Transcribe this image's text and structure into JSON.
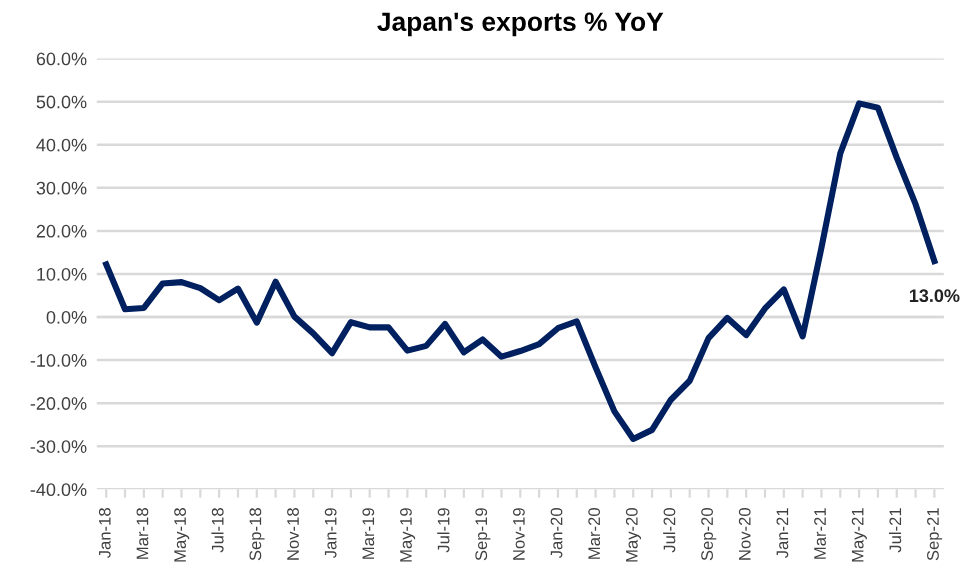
{
  "chart_data": {
    "type": "line",
    "title": "Japan's exports % YoY",
    "categories": [
      "Jan-18",
      null,
      "Mar-18",
      null,
      "May-18",
      null,
      "Jul-18",
      null,
      "Sep-18",
      null,
      "Nov-18",
      null,
      "Jan-19",
      null,
      "Mar-19",
      null,
      "May-19",
      null,
      "Jul-19",
      null,
      "Sep-19",
      null,
      "Nov-19",
      null,
      "Jan-20",
      null,
      "Mar-20",
      null,
      "May-20",
      null,
      "Jul-20",
      null,
      "Sep-20",
      null,
      "Nov-20",
      null,
      "Jan-21",
      null,
      "Mar-21",
      null,
      "May-21",
      null,
      "Jul-21",
      null,
      "Sep-21"
    ],
    "series": [
      {
        "color": "#002060",
        "values": [
          12.2,
          1.8,
          2.1,
          7.8,
          8.1,
          6.7,
          3.9,
          6.6,
          -1.3,
          8.2,
          0.1,
          -3.8,
          -8.4,
          -1.2,
          -2.4,
          -2.4,
          -7.8,
          -6.7,
          -1.6,
          -8.2,
          -5.2,
          -9.2,
          -7.9,
          -6.3,
          -2.6,
          -1.0,
          -11.7,
          -21.9,
          -28.3,
          -26.2,
          -19.2,
          -14.8,
          -4.9,
          -0.2,
          -4.2,
          2.0,
          6.4,
          -4.5,
          16.1,
          38.0,
          49.6,
          48.6,
          37.0,
          26.2,
          13.0
        ],
        "value_labels": [
          null,
          null,
          null,
          null,
          null,
          null,
          null,
          null,
          null,
          null,
          null,
          null,
          null,
          null,
          null,
          null,
          null,
          null,
          null,
          null,
          null,
          null,
          null,
          null,
          null,
          null,
          null,
          null,
          null,
          null,
          null,
          null,
          null,
          null,
          null,
          null,
          null,
          null,
          null,
          null,
          null,
          null,
          null,
          null,
          "13.0%"
        ]
      }
    ],
    "ylim": [
      -40,
      60
    ],
    "yticks": [
      {
        "value": -40,
        "label": "-40.0%"
      },
      {
        "value": -30,
        "label": "-30.0%"
      },
      {
        "value": -20,
        "label": "-20.0%"
      },
      {
        "value": -10,
        "label": "-10.0%"
      },
      {
        "value": 0,
        "label": "0.0%"
      },
      {
        "value": 10,
        "label": "10.0%"
      },
      {
        "value": 20,
        "label": "20.0%"
      },
      {
        "value": 30,
        "label": "30.0%"
      },
      {
        "value": 40,
        "label": "40.0%"
      },
      {
        "value": 50,
        "label": "50.0%"
      },
      {
        "value": 60,
        "label": "60.0%"
      }
    ],
    "grid": "y",
    "legend": false,
    "marker": "none",
    "line_style": "solid"
  }
}
